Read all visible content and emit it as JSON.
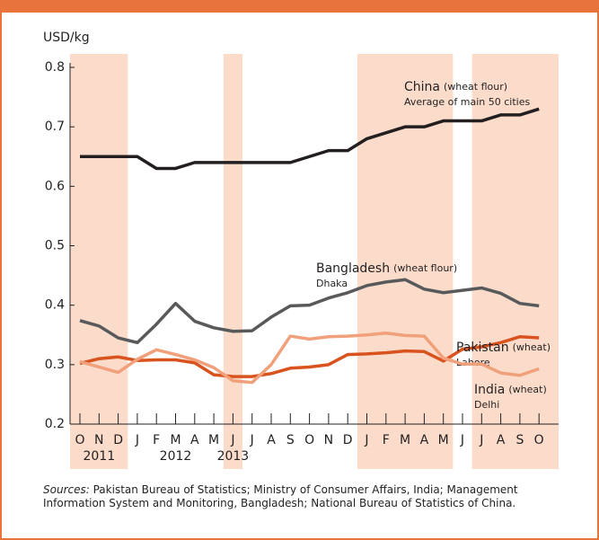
{
  "chart_data": {
    "type": "line",
    "y_label": "USD/kg",
    "categories": [
      "O",
      "N",
      "D",
      "J",
      "F",
      "M",
      "A",
      "M",
      "J",
      "J",
      "A",
      "S",
      "O",
      "N",
      "D",
      "J",
      "F",
      "M",
      "A",
      "M",
      "J",
      "J",
      "A",
      "S",
      "O"
    ],
    "years": [
      "2011",
      "2012",
      "2013"
    ],
    "ylim": [
      0.2,
      0.8
    ],
    "yticks": [
      0.2,
      0.3,
      0.4,
      0.5,
      0.6,
      0.7,
      0.8
    ],
    "series": [
      {
        "name": "China",
        "qualifier": "(wheat flour)",
        "note": "Average of main 50 cities",
        "color": "#231f20",
        "values": [
          0.65,
          0.65,
          0.65,
          0.65,
          0.63,
          0.63,
          0.64,
          0.64,
          0.64,
          0.64,
          0.64,
          0.64,
          0.65,
          0.66,
          0.66,
          0.68,
          0.69,
          0.7,
          0.7,
          0.71,
          0.71,
          0.71,
          0.72,
          0.72,
          0.73
        ]
      },
      {
        "name": "Bangladesh",
        "qualifier": "(wheat flour)",
        "note": "Dhaka",
        "color": "#58595b",
        "values": [
          0.374,
          0.365,
          0.345,
          0.337,
          0.368,
          0.403,
          0.373,
          0.362,
          0.356,
          0.357,
          0.38,
          0.399,
          0.4,
          0.412,
          0.421,
          0.433,
          0.439,
          0.443,
          0.427,
          0.421,
          0.425,
          0.429,
          0.42,
          0.403,
          0.399
        ]
      },
      {
        "name": "Pakistan",
        "qualifier": "(wheat)",
        "note": "Lahore",
        "color": "#d9531e",
        "values": [
          0.302,
          0.31,
          0.313,
          0.307,
          0.308,
          0.308,
          0.303,
          0.283,
          0.28,
          0.28,
          0.285,
          0.294,
          0.296,
          0.3,
          0.317,
          0.318,
          0.32,
          0.323,
          0.322,
          0.306,
          0.326,
          0.33,
          0.337,
          0.347,
          0.345
        ]
      },
      {
        "name": "India",
        "qualifier": "(wheat)",
        "note": "Delhi",
        "color": "#f0a07a",
        "values": [
          0.305,
          0.296,
          0.287,
          0.309,
          0.325,
          0.317,
          0.308,
          0.295,
          0.273,
          0.27,
          0.3,
          0.348,
          0.343,
          0.347,
          0.348,
          0.35,
          0.353,
          0.349,
          0.348,
          0.311,
          0.301,
          0.301,
          0.286,
          0.282,
          0.293
        ]
      }
    ],
    "shade_color": "#fbdccb",
    "sources_label": "Sources:",
    "sources": "Pakistan Bureau of Statistics; Ministry of Consumer Affairs, India; Management Information System and Monitoring, Bangladesh; National Bureau of Statistics of China."
  }
}
